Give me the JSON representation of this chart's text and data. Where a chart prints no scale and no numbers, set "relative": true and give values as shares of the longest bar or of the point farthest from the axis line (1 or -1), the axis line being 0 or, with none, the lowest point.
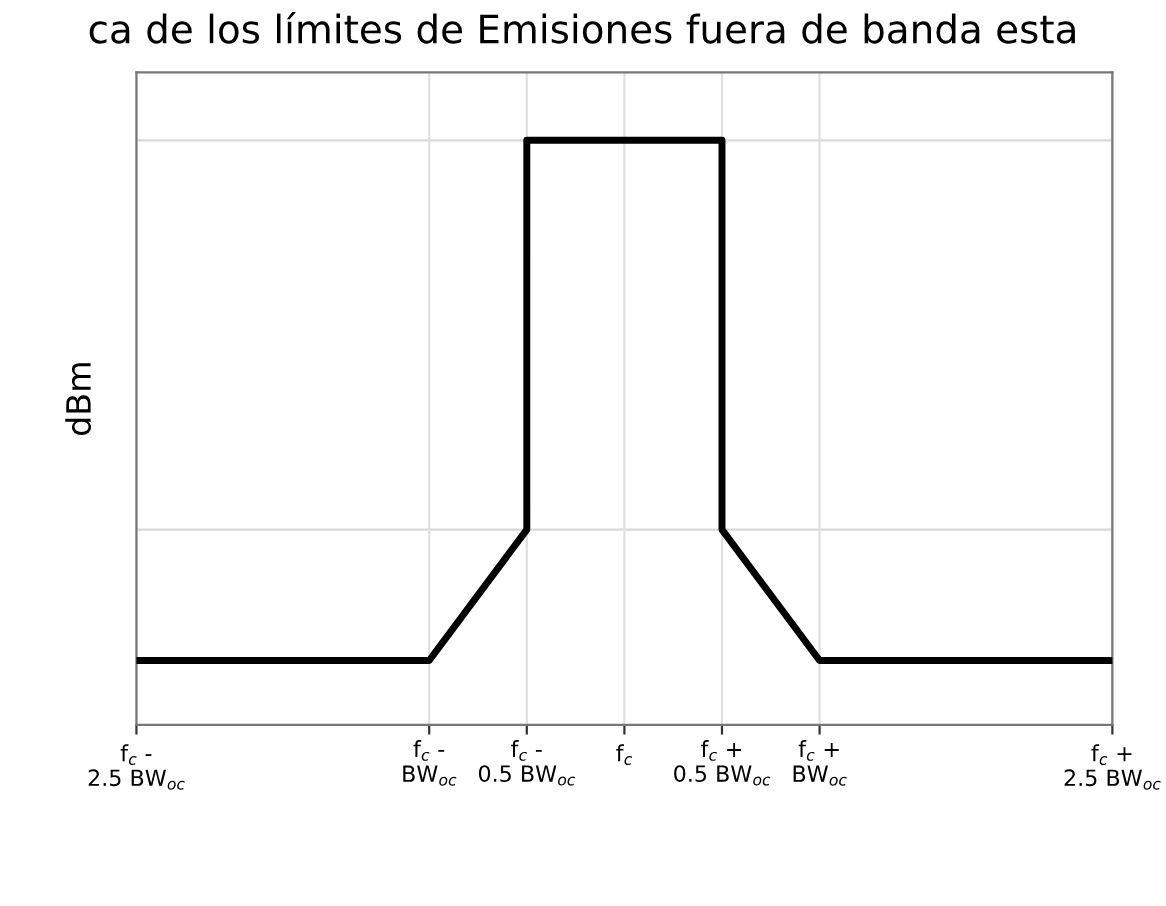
{
  "chart_data": {
    "type": "line",
    "title": "ca de los límites de Emisiones fuera de banda esta",
    "ylabel": "dBm",
    "relative": true,
    "x": [
      -2.5,
      -1,
      -0.5,
      -0.5,
      0.5,
      0.5,
      1,
      2.5
    ],
    "series": [
      {
        "color": "#000000",
        "values": [
          0.11,
          0.11,
          0.334,
          1,
          1,
          0.334,
          0.11,
          0.11
        ]
      }
    ],
    "xlim": [
      -2.5,
      2.5
    ],
    "xticks": [
      {
        "value": -2.5,
        "label": "f$_{c}$ -\n2.5 BW$_{oc}$"
      },
      {
        "value": -1,
        "label": "f$_{c}$ -\nBW$_{oc}$"
      },
      {
        "value": -0.5,
        "label": "f$_{c}$ -\n0.5 BW$_{oc}$"
      },
      {
        "value": 0,
        "label": "f$_{c}$"
      },
      {
        "value": 0.5,
        "label": "f$_{c}$ +\n0.5 BW$_{oc}$"
      },
      {
        "value": 1,
        "label": "f$_{c}$ +\nBW$_{oc}$"
      },
      {
        "value": 2.5,
        "label": "f$_{c}$ +\n2.5 BW$_{oc}$"
      }
    ],
    "ref_lines": [
      {
        "axis": "y",
        "value": 1,
        "color": "#d9d9d9"
      },
      {
        "axis": "y",
        "value": 0.334,
        "color": "#d9d9d9"
      }
    ],
    "grid": "x",
    "marker": "none",
    "line_style": "solid"
  }
}
